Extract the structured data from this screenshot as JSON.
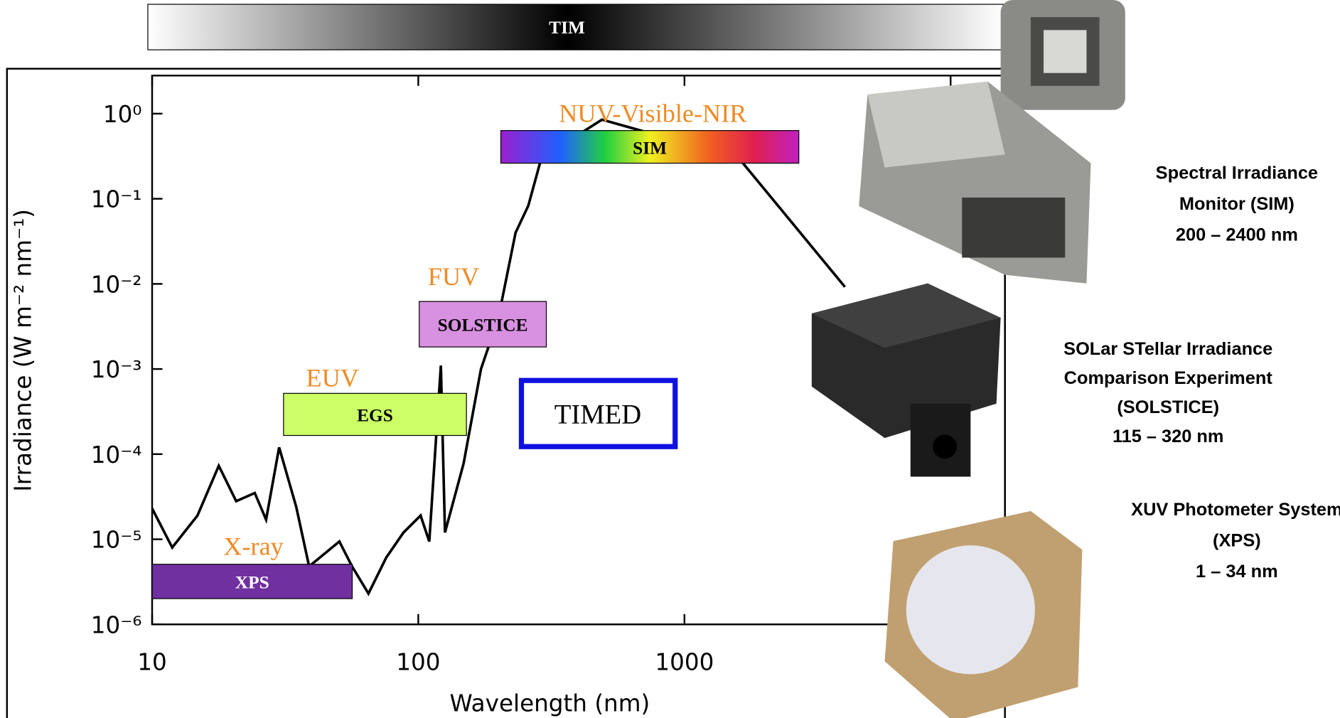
{
  "chart_data": {
    "type": "line",
    "log_x": true,
    "log_y": true,
    "xlabel": "Wavelength (nm)",
    "ylabel": "Irradiance (W m⁻² nm⁻¹)",
    "xlim": [
      10,
      16000
    ],
    "ylim": [
      1e-06,
      2.8
    ],
    "xticks": [
      10,
      100,
      1000,
      10000
    ],
    "yticks": [
      {
        "value": 1,
        "label": "10⁰"
      },
      {
        "value": 0.1,
        "label": "10⁻¹"
      },
      {
        "value": 0.01,
        "label": "10⁻²"
      },
      {
        "value": 0.001,
        "label": "10⁻³"
      },
      {
        "value": 0.0001,
        "label": "10⁻⁴"
      },
      {
        "value": 1e-05,
        "label": "10⁻⁵"
      },
      {
        "value": 1e-06,
        "label": "10⁻⁶"
      }
    ],
    "x": [
      10,
      11.9,
      14.8,
      17.8,
      20.7,
      24.3,
      26.8,
      30,
      34.8,
      38.9,
      50.5,
      56.4,
      65,
      75.8,
      88,
      102,
      110,
      121.6,
      126,
      148,
      172,
      200,
      232,
      259,
      290,
      490,
      1600,
      4010
    ],
    "series": [
      {
        "color": "#000000",
        "values": [
          2.3e-05,
          8e-06,
          1.9e-05,
          7.3e-05,
          2.8e-05,
          3.5e-05,
          1.7e-05,
          0.00012,
          2.4e-05,
          4.8e-06,
          9.4e-06,
          4.8e-06,
          2.3e-06,
          6.1e-06,
          1.2e-05,
          1.9e-05,
          9.4e-06,
          0.0011,
          1.2e-05,
          7.8e-05,
          0.001,
          0.004,
          0.04,
          0.083,
          0.3,
          0.85,
          0.3,
          0.0092
        ]
      }
    ],
    "tim_label": "TIM",
    "timed_label": "TIMED",
    "bands": [
      {
        "group": "NUV-Visible-NIR",
        "label": "SIM"
      },
      {
        "group": "FUV",
        "label": "SOLSTICE"
      },
      {
        "group": "EUV",
        "label": "EGS"
      },
      {
        "group": "X-ray",
        "label": "XPS"
      }
    ]
  },
  "instruments": [
    {
      "lines": [
        "Spectral Irradiance",
        "Monitor (SIM)",
        "200 – 2400 nm"
      ]
    },
    {
      "lines": [
        "SOLar STellar Irradiance",
        "Comparison Experiment",
        "(SOLSTICE)",
        "115 – 320 nm"
      ]
    },
    {
      "lines": [
        "XUV Photometer System",
        "(XPS)",
        "1 – 34 nm"
      ]
    }
  ]
}
